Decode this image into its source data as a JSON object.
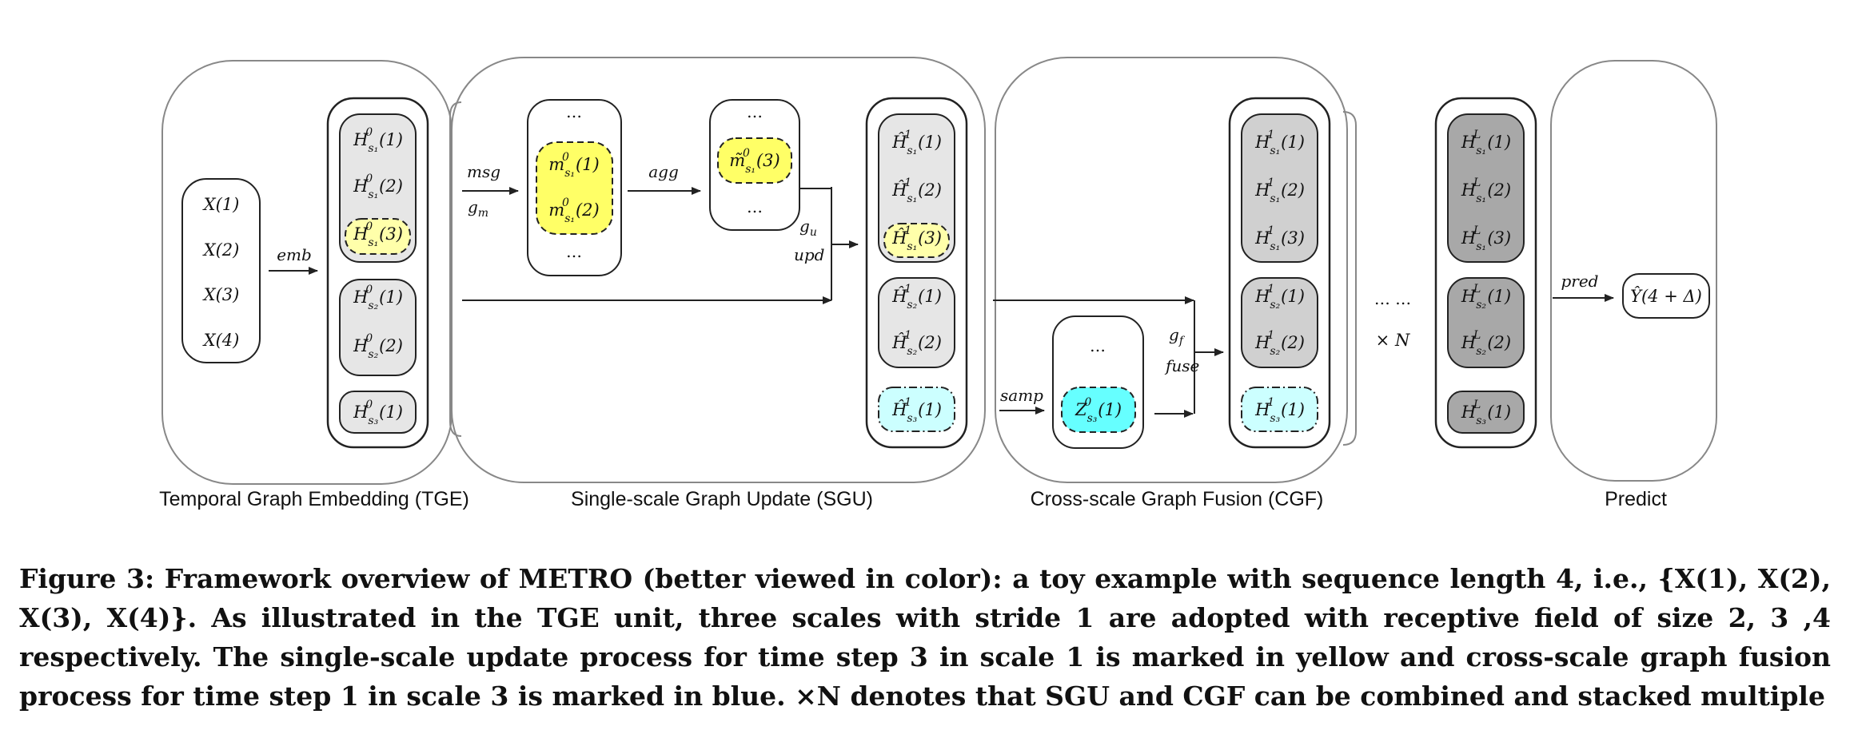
{
  "units": {
    "tge": "Temporal Graph Embedding (TGE)",
    "sgu": "Single-scale Graph Update (SGU)",
    "cgf": "Cross-scale Graph Fusion (CGF)",
    "predict": "Predict"
  },
  "inputs": [
    "X(1)",
    "X(2)",
    "X(3)",
    "X(4)"
  ],
  "ops": {
    "emb": "emb",
    "msg": "msg",
    "gm": "g",
    "gm_sub": "m",
    "agg": "agg",
    "gu": "g",
    "gu_sub": "u",
    "upd": "upd",
    "samp": "samp",
    "gf": "g",
    "gf_sub": "f",
    "fuse": "fuse",
    "pred": "pred"
  },
  "ellipsis": "…",
  "repeat": {
    "dots": "…  …",
    "times": "× N"
  },
  "output": "Ŷ(4 + Δ)",
  "caption": "Figure 3: Framework overview of METRO (better viewed in color): a toy example with sequence length 4, i.e., {X(1), X(2), X(3), X(4)}. As illustrated in the TGE unit, three scales with stride 1 are adopted with receptive field of size 2, 3 ,4 respectively. The single-scale update process for time step 3 in scale 1 is marked in yellow and cross-scale graph fusion process for time step 1 in scale 3 is marked in blue. ×N denotes that SGU and CGF can be combined and stacked multiple",
  "colors": {
    "yellow": "#ffff66",
    "light_yellow": "#ffffaa",
    "cyan": "#66ffff",
    "light_cyan": "#ccffff",
    "light_gray": "#e6e6e6",
    "gray": "#d0d0d0",
    "dark_gray": "#a8a8a8"
  }
}
